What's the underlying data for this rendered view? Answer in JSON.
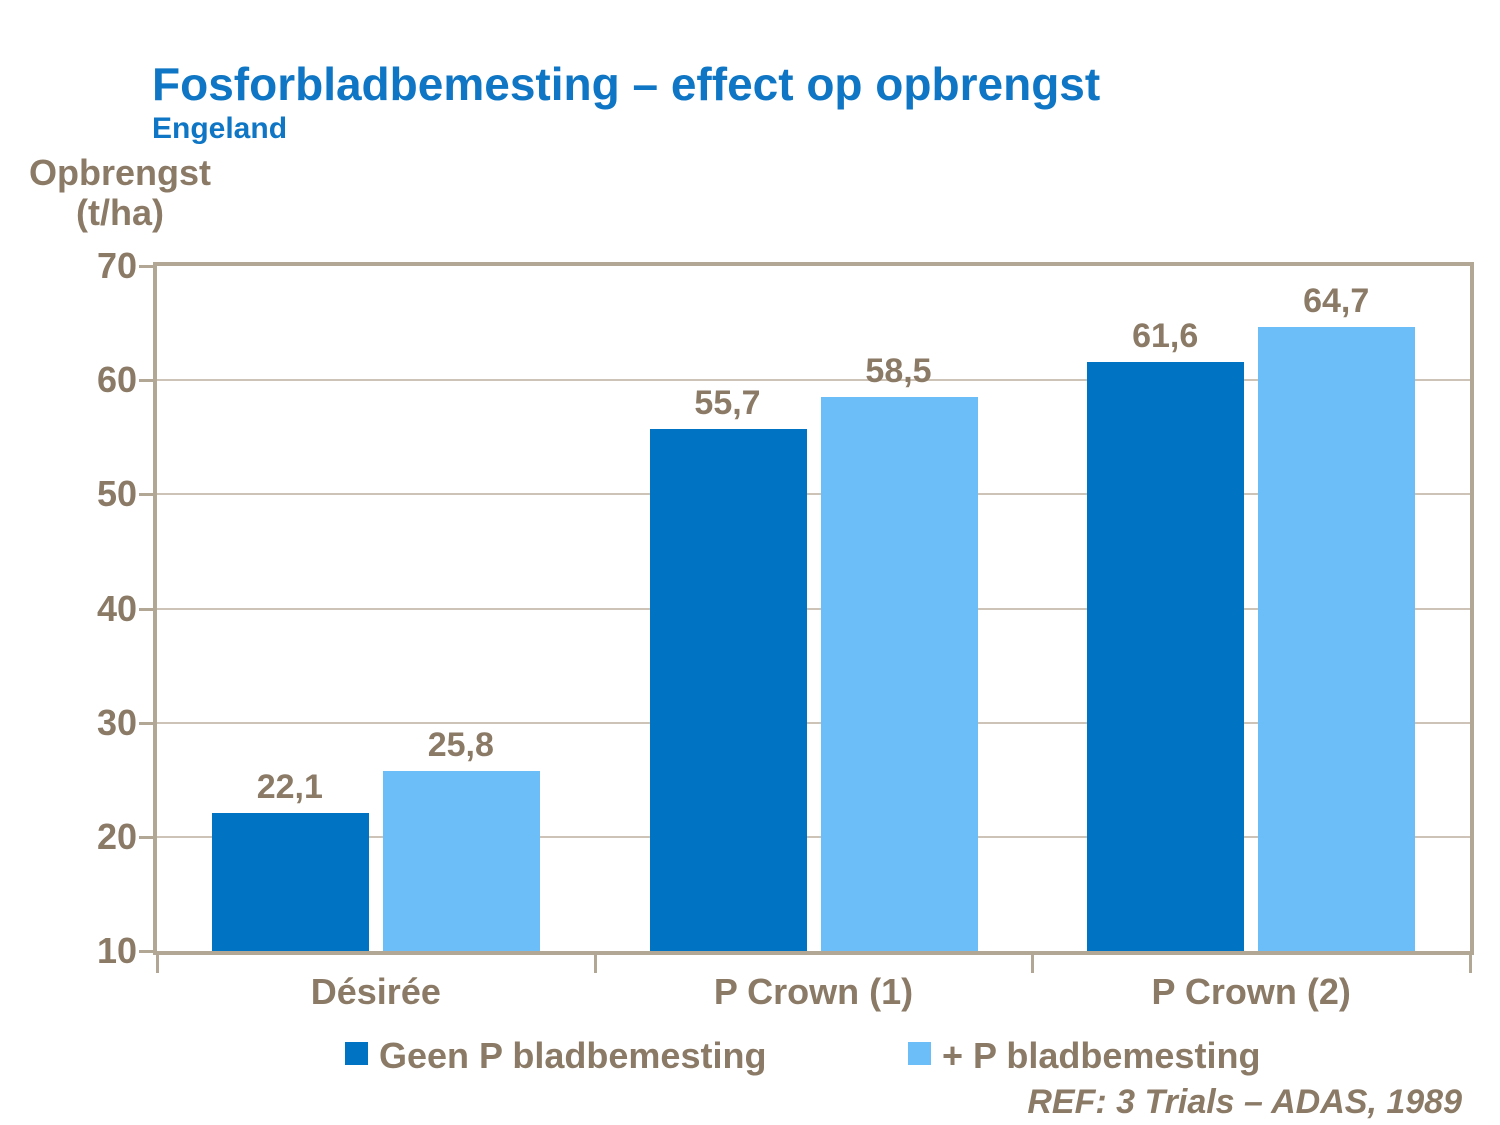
{
  "header": {
    "title": "Fosforbladbemesting – effect op opbrengst",
    "subtitle": "Engeland"
  },
  "y_axis_title": {
    "line1": "Opbrengst",
    "line2": "(t/ha)"
  },
  "footnote": "REF: 3 Trials – ADAS, 1989",
  "colors": {
    "title_blue": "#0e76c4",
    "label_brown": "#8a7a66",
    "frame_tan": "#b2a695",
    "grid_tan": "#cdc3b6",
    "background": "#ffffff"
  },
  "chart_data": {
    "type": "bar",
    "title": "Fosforbladbemesting – effect op opbrengst",
    "subtitle": "Engeland",
    "ylabel": "Opbrengst (t/ha)",
    "xlabel": "",
    "categories": [
      "Désirée",
      "P Crown (1)",
      "P Crown (2)"
    ],
    "series": [
      {
        "name": "Geen P bladbemesting",
        "color": "#0073c2",
        "values": [
          22.1,
          55.7,
          61.6
        ],
        "labels": [
          "22,1",
          "55,7",
          "61,6"
        ]
      },
      {
        "name": "+ P bladbemesting",
        "color": "#6bbef8",
        "values": [
          25.8,
          58.5,
          64.7
        ],
        "labels": [
          "25,8",
          "58,5",
          "64,7"
        ]
      }
    ],
    "ylim": [
      10,
      70
    ],
    "ytick_step": 10,
    "ytick_labels": [
      "10",
      "20",
      "30",
      "40",
      "50",
      "60",
      "70"
    ],
    "grid": true,
    "legend_position": "bottom"
  }
}
